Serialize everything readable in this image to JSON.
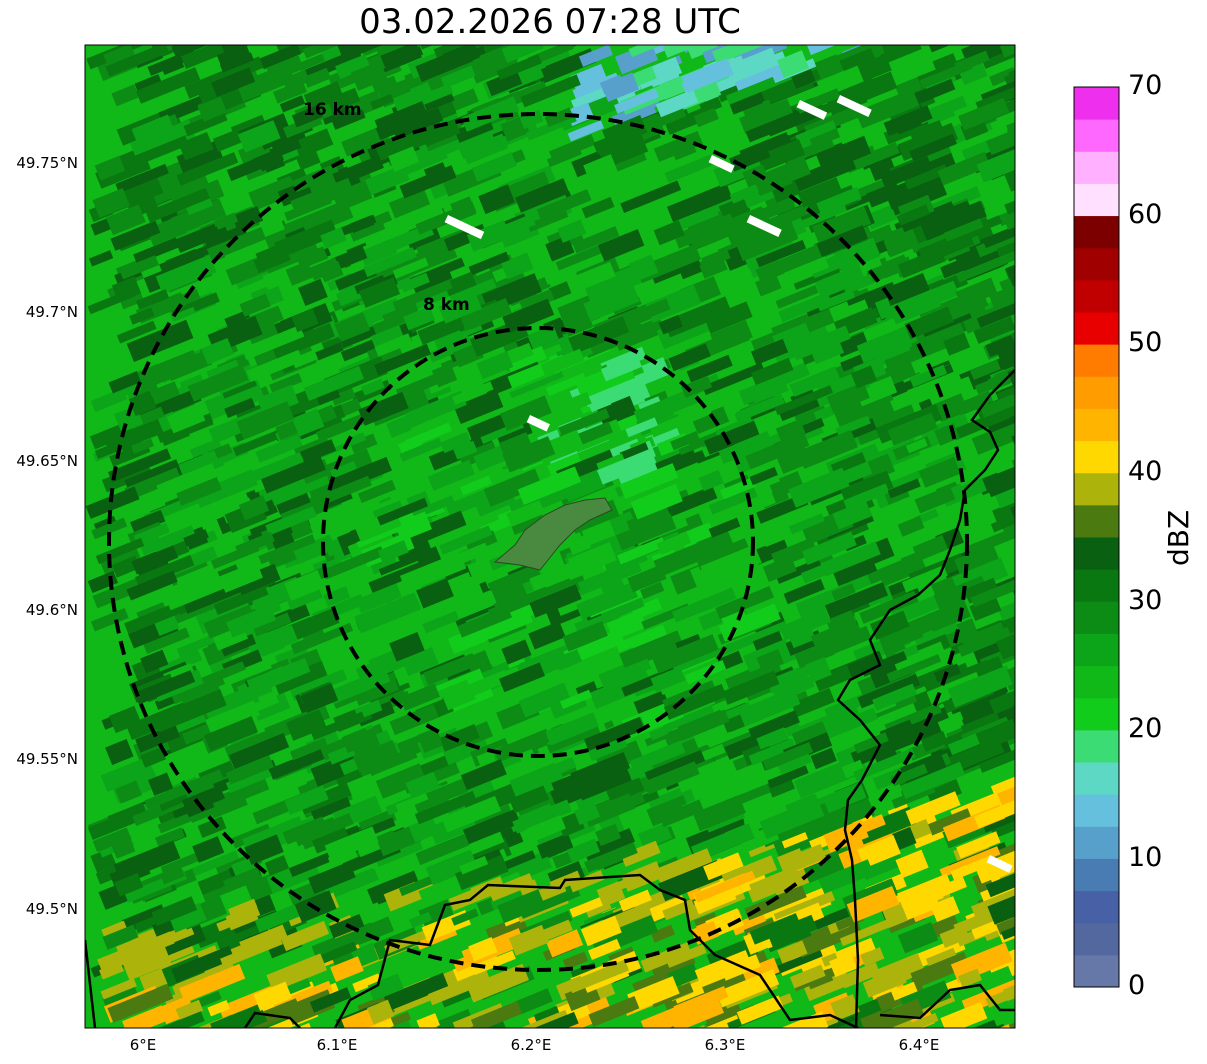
{
  "title": "03.02.2026 07:28 UTC",
  "map": {
    "lon_ticks": [
      "6°E",
      "6.1°E",
      "6.2°E",
      "6.3°E",
      "6.4°E"
    ],
    "lat_ticks": [
      "49.75°N",
      "49.7°N",
      "49.65°N",
      "49.6°N",
      "49.55°N",
      "49.5°N"
    ],
    "ring_labels": [
      "16 km",
      "8 km"
    ],
    "extent": {
      "lon_min": 5.97,
      "lon_max": 6.45,
      "lat_min": 49.46,
      "lat_max": 49.79
    },
    "radar_center": {
      "lon": 6.2,
      "lat": 49.623
    }
  },
  "colorbar": {
    "label": "dBZ",
    "ticks": [
      "0",
      "10",
      "20",
      "30",
      "40",
      "50",
      "60",
      "70"
    ],
    "min": 0,
    "max": 70,
    "step": 2.5,
    "colors": [
      "#6678a8",
      "#5468a0",
      "#4860a6",
      "#4a7cb4",
      "#58a0cc",
      "#64c0dc",
      "#5cd8c4",
      "#3cdc74",
      "#12cc1c",
      "#10b818",
      "#0ca418",
      "#0c8c14",
      "#0a7810",
      "#086010",
      "#4a7a10",
      "#acb40c",
      "#ffd800",
      "#ffb400",
      "#ff9c00",
      "#ff7c00",
      "#e80000",
      "#c00000",
      "#a00000",
      "#7c0000",
      "#ffe0ff",
      "#ffb0ff",
      "#ff68ff",
      "#ee30ee"
    ]
  }
}
